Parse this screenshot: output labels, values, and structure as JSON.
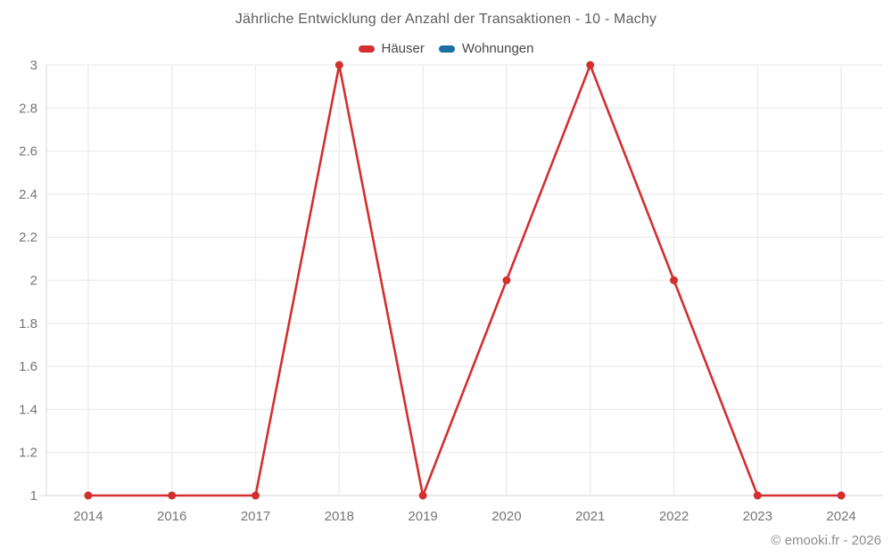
{
  "footer": "© emooki.fr - 2026",
  "colors": {
    "background": "#ffffff",
    "gridline": "#ececec",
    "axis_line": "#e0e0e0",
    "title_text": "#5e5e5e",
    "legend_text": "#474747",
    "tick_text": "#757575",
    "footer_text": "#8d8d8d"
  },
  "chart_data": {
    "type": "line",
    "title": "Jährliche Entwicklung der Anzahl der Transaktionen - 10 - Machy",
    "xlabel": "",
    "ylabel": "",
    "categories": [
      "2014",
      "2016",
      "2017",
      "2018",
      "2019",
      "2020",
      "2021",
      "2022",
      "2023",
      "2024"
    ],
    "series": [
      {
        "name": "Häuser",
        "color": "#d32f2f",
        "values": [
          1,
          1,
          1,
          3,
          1,
          2,
          3,
          2,
          1,
          1
        ]
      },
      {
        "name": "Wohnungen",
        "color": "#1a6fa4",
        "values": []
      }
    ],
    "ylim": [
      1,
      3
    ],
    "y_ticks": [
      "3",
      "2.8",
      "2.6",
      "2.4",
      "2.2",
      "2",
      "1.8",
      "1.6",
      "1.4",
      "1.2",
      "1"
    ],
    "grid": true,
    "legend_position": "top",
    "line_width": 2.6,
    "marker_radius": 4.5
  }
}
